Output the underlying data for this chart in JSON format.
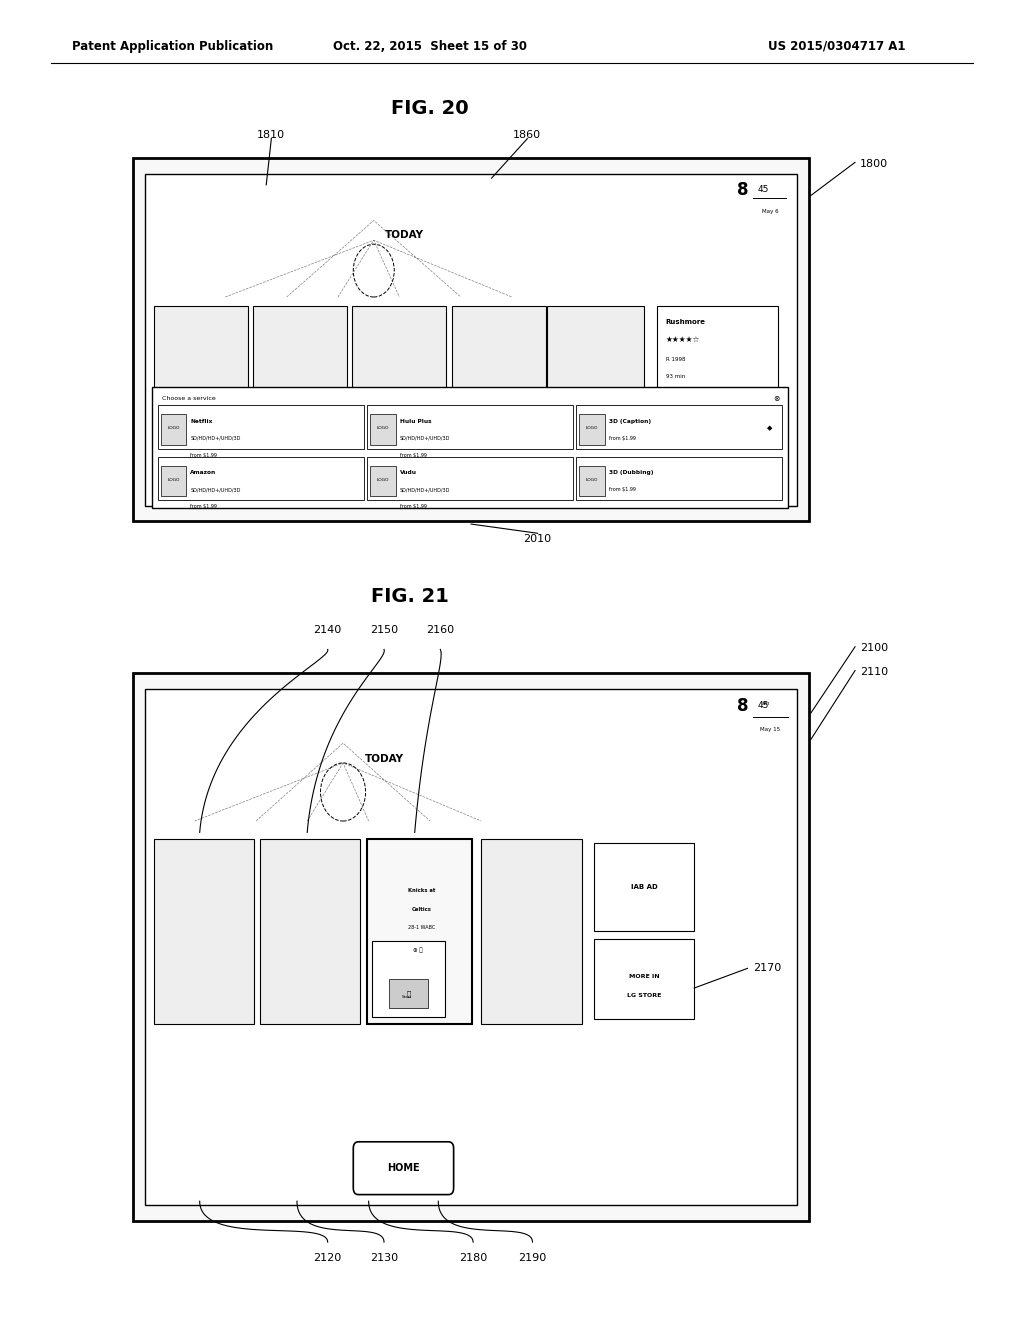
{
  "bg_color": "#ffffff",
  "header_left": "Patent Application Publication",
  "header_mid": "Oct. 22, 2015  Sheet 15 of 30",
  "header_right": "US 2015/0304717 A1",
  "fig20_title": "FIG. 20",
  "fig21_title": "FIG. 21"
}
